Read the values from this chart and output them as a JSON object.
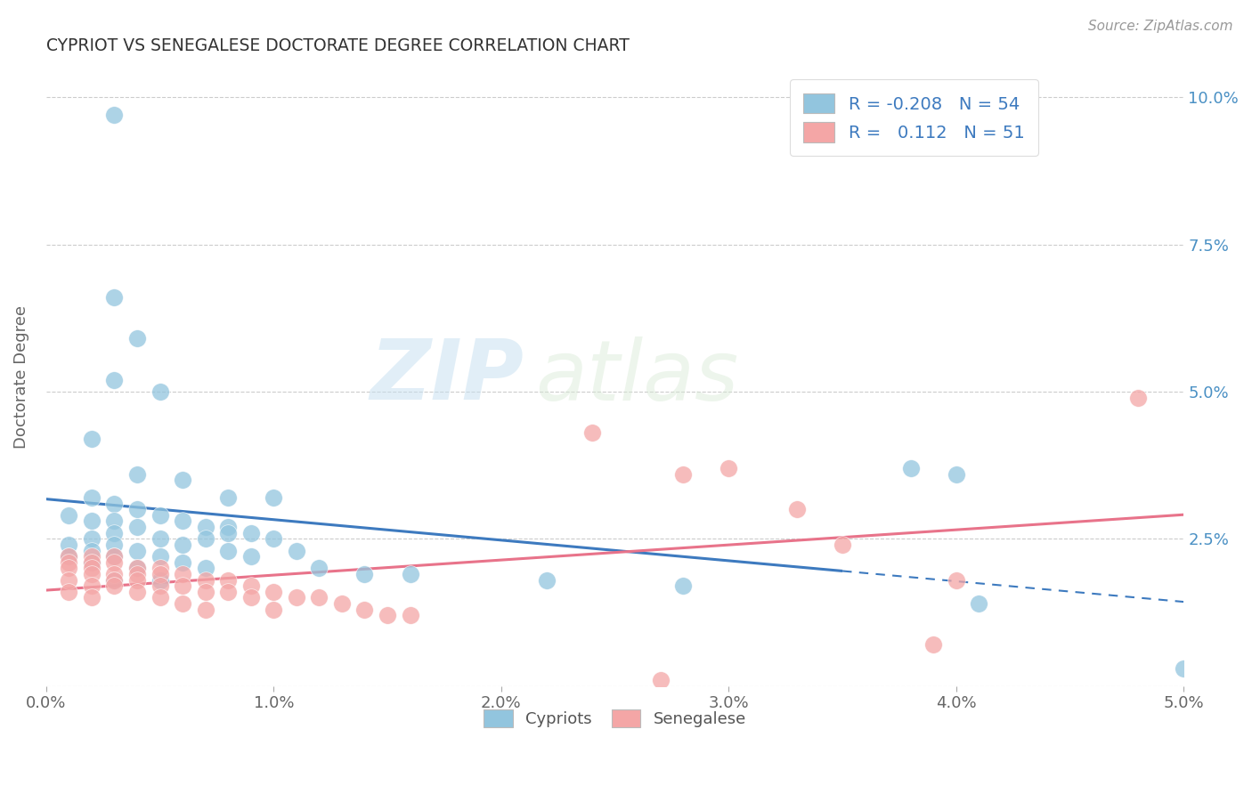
{
  "title": "CYPRIOT VS SENEGALESE DOCTORATE DEGREE CORRELATION CHART",
  "source": "Source: ZipAtlas.com",
  "ylabel": "Doctorate Degree",
  "x_tick_labels": [
    "0.0%",
    "1.0%",
    "2.0%",
    "3.0%",
    "4.0%",
    "5.0%"
  ],
  "y_tick_labels_right": [
    "",
    "2.5%",
    "5.0%",
    "7.5%",
    "10.0%"
  ],
  "xlim": [
    0.0,
    0.05
  ],
  "ylim": [
    0.0,
    0.105
  ],
  "watermark_zip": "ZIP",
  "watermark_atlas": "atlas",
  "legend_r_cypriot": "-0.208",
  "legend_n_cypriot": "54",
  "legend_r_senegalese": "0.112",
  "legend_n_senegalese": "51",
  "cypriot_color": "#92c5de",
  "senegalese_color": "#f4a6a6",
  "blue_line_color": "#3d7abf",
  "pink_line_color": "#e8738a",
  "cypriot_scatter": [
    [
      0.003,
      0.097
    ],
    [
      0.003,
      0.066
    ],
    [
      0.004,
      0.059
    ],
    [
      0.003,
      0.052
    ],
    [
      0.005,
      0.05
    ],
    [
      0.002,
      0.042
    ],
    [
      0.004,
      0.036
    ],
    [
      0.006,
      0.035
    ],
    [
      0.008,
      0.032
    ],
    [
      0.01,
      0.032
    ],
    [
      0.002,
      0.032
    ],
    [
      0.003,
      0.031
    ],
    [
      0.004,
      0.03
    ],
    [
      0.005,
      0.029
    ],
    [
      0.001,
      0.029
    ],
    [
      0.003,
      0.028
    ],
    [
      0.002,
      0.028
    ],
    [
      0.006,
      0.028
    ],
    [
      0.007,
      0.027
    ],
    [
      0.008,
      0.027
    ],
    [
      0.004,
      0.027
    ],
    [
      0.009,
      0.026
    ],
    [
      0.003,
      0.026
    ],
    [
      0.008,
      0.026
    ],
    [
      0.007,
      0.025
    ],
    [
      0.002,
      0.025
    ],
    [
      0.005,
      0.025
    ],
    [
      0.01,
      0.025
    ],
    [
      0.006,
      0.024
    ],
    [
      0.003,
      0.024
    ],
    [
      0.001,
      0.024
    ],
    [
      0.004,
      0.023
    ],
    [
      0.011,
      0.023
    ],
    [
      0.002,
      0.023
    ],
    [
      0.008,
      0.023
    ],
    [
      0.001,
      0.022
    ],
    [
      0.003,
      0.022
    ],
    [
      0.005,
      0.022
    ],
    [
      0.009,
      0.022
    ],
    [
      0.002,
      0.021
    ],
    [
      0.006,
      0.021
    ],
    [
      0.007,
      0.02
    ],
    [
      0.012,
      0.02
    ],
    [
      0.004,
      0.02
    ],
    [
      0.014,
      0.019
    ],
    [
      0.016,
      0.019
    ],
    [
      0.003,
      0.018
    ],
    [
      0.005,
      0.018
    ],
    [
      0.022,
      0.018
    ],
    [
      0.028,
      0.017
    ],
    [
      0.038,
      0.037
    ],
    [
      0.04,
      0.036
    ],
    [
      0.041,
      0.014
    ],
    [
      0.05,
      0.003
    ]
  ],
  "senegalese_scatter": [
    [
      0.001,
      0.022
    ],
    [
      0.002,
      0.022
    ],
    [
      0.003,
      0.022
    ],
    [
      0.001,
      0.021
    ],
    [
      0.002,
      0.021
    ],
    [
      0.003,
      0.021
    ],
    [
      0.002,
      0.02
    ],
    [
      0.004,
      0.02
    ],
    [
      0.005,
      0.02
    ],
    [
      0.001,
      0.02
    ],
    [
      0.003,
      0.019
    ],
    [
      0.004,
      0.019
    ],
    [
      0.005,
      0.019
    ],
    [
      0.002,
      0.019
    ],
    [
      0.006,
      0.019
    ],
    [
      0.001,
      0.018
    ],
    [
      0.003,
      0.018
    ],
    [
      0.007,
      0.018
    ],
    [
      0.008,
      0.018
    ],
    [
      0.004,
      0.018
    ],
    [
      0.002,
      0.017
    ],
    [
      0.005,
      0.017
    ],
    [
      0.009,
      0.017
    ],
    [
      0.006,
      0.017
    ],
    [
      0.003,
      0.017
    ],
    [
      0.007,
      0.016
    ],
    [
      0.001,
      0.016
    ],
    [
      0.004,
      0.016
    ],
    [
      0.01,
      0.016
    ],
    [
      0.008,
      0.016
    ],
    [
      0.005,
      0.015
    ],
    [
      0.011,
      0.015
    ],
    [
      0.002,
      0.015
    ],
    [
      0.012,
      0.015
    ],
    [
      0.009,
      0.015
    ],
    [
      0.006,
      0.014
    ],
    [
      0.013,
      0.014
    ],
    [
      0.01,
      0.013
    ],
    [
      0.014,
      0.013
    ],
    [
      0.007,
      0.013
    ],
    [
      0.015,
      0.012
    ],
    [
      0.016,
      0.012
    ],
    [
      0.024,
      0.043
    ],
    [
      0.03,
      0.037
    ],
    [
      0.033,
      0.03
    ],
    [
      0.028,
      0.036
    ],
    [
      0.035,
      0.024
    ],
    [
      0.048,
      0.049
    ],
    [
      0.027,
      0.001
    ],
    [
      0.04,
      0.018
    ],
    [
      0.039,
      0.007
    ]
  ],
  "blue_line_solid_end": 0.035,
  "blue_line_x0": 0.0,
  "blue_line_x1": 0.05,
  "pink_line_x0": 0.0,
  "pink_line_x1": 0.05
}
